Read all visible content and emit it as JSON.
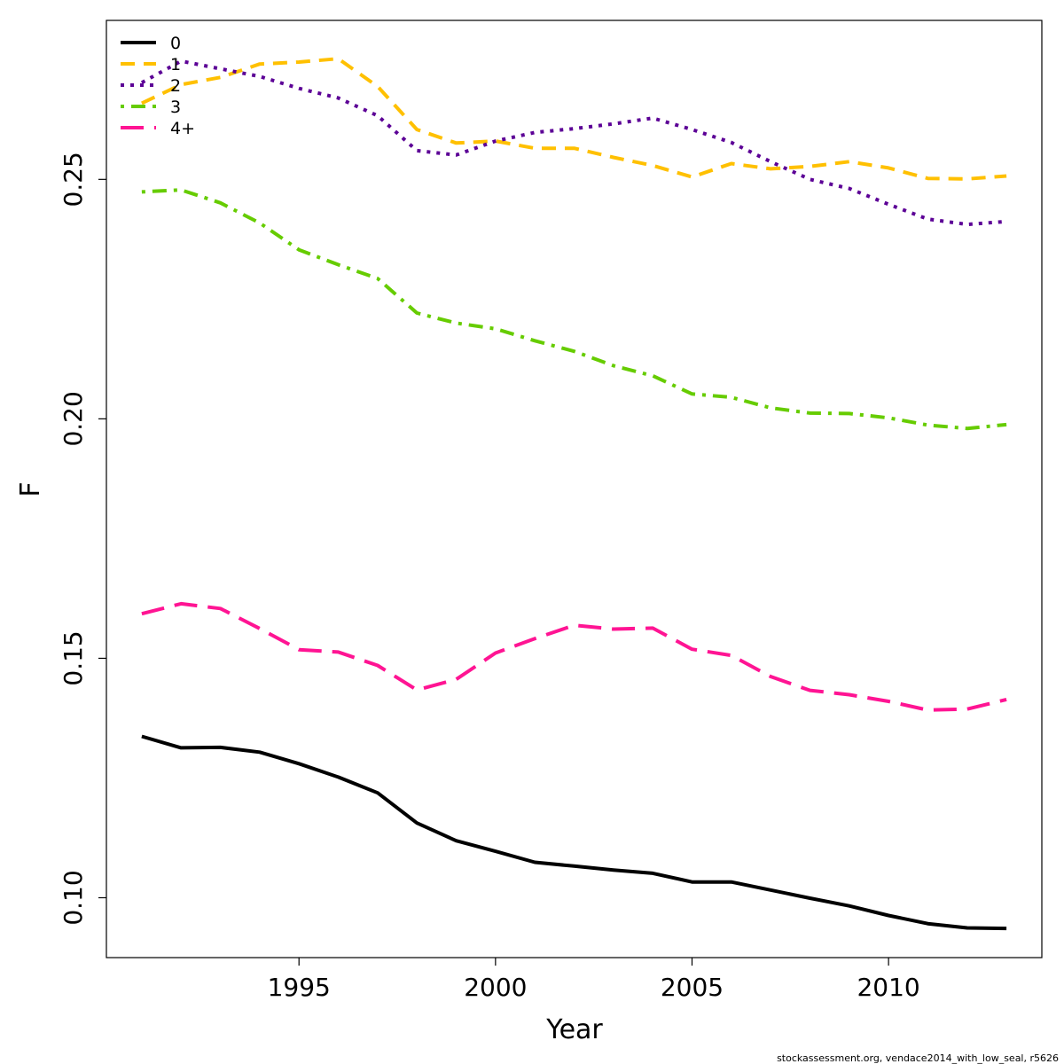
{
  "chart_data": {
    "type": "line",
    "xlabel": "Year",
    "ylabel": "F",
    "xlim": [
      1990.1,
      2013.9
    ],
    "ylim": [
      0.0875,
      0.2832
    ],
    "x_ticks": [
      1995,
      2000,
      2005,
      2010
    ],
    "x_tick_labels": [
      "1995",
      "2000",
      "2005",
      "2010"
    ],
    "y_ticks": [
      0.1,
      0.15,
      0.2,
      0.25
    ],
    "y_tick_labels": [
      "0.10",
      "0.15",
      "0.20",
      "0.25"
    ],
    "grid": false,
    "legend_position": "top-left",
    "x": [
      1991,
      1992,
      1993,
      1994,
      1995,
      1996,
      1997,
      1998,
      1999,
      2000,
      2001,
      2002,
      2003,
      2004,
      2005,
      2006,
      2007,
      2008,
      2009,
      2010,
      2011,
      2012,
      2013
    ],
    "series": [
      {
        "name": "0",
        "color": "#000000",
        "dash": "solid",
        "values": [
          0.1337,
          0.1313,
          0.1314,
          0.1304,
          0.128,
          0.1252,
          0.1219,
          0.1156,
          0.1119,
          0.1097,
          0.1074,
          0.1066,
          0.1058,
          0.1051,
          0.1033,
          0.1033,
          0.1016,
          0.0999,
          0.0983,
          0.0963,
          0.0946,
          0.0937,
          0.0936
        ]
      },
      {
        "name": "1",
        "color": "#FFC000",
        "dash": "dashed",
        "values": [
          0.2659,
          0.2698,
          0.2713,
          0.2741,
          0.2745,
          0.2752,
          0.2694,
          0.2604,
          0.2576,
          0.258,
          0.2565,
          0.2565,
          0.2546,
          0.2529,
          0.2505,
          0.2533,
          0.2522,
          0.2527,
          0.2537,
          0.2524,
          0.2502,
          0.2501,
          0.2507
        ]
      },
      {
        "name": "2",
        "color": "#5C0096",
        "dash": "dotted",
        "values": [
          0.2702,
          0.2747,
          0.2731,
          0.2715,
          0.269,
          0.267,
          0.2633,
          0.256,
          0.2551,
          0.258,
          0.2598,
          0.2606,
          0.2616,
          0.2628,
          0.2604,
          0.2577,
          0.2537,
          0.25,
          0.2481,
          0.2448,
          0.2417,
          0.2406,
          0.2412
        ]
      },
      {
        "name": "3",
        "color": "#66CC00",
        "dash": "dotdash",
        "values": [
          0.2474,
          0.2478,
          0.2451,
          0.2409,
          0.2353,
          0.2322,
          0.2293,
          0.2221,
          0.22,
          0.2188,
          0.2163,
          0.2141,
          0.2111,
          0.209,
          0.2052,
          0.2045,
          0.2023,
          0.2012,
          0.2011,
          0.2002,
          0.1987,
          0.198,
          0.1988
        ]
      },
      {
        "name": "4+",
        "color": "#FF1493",
        "dash": "longdash",
        "values": [
          0.1593,
          0.1614,
          0.1604,
          0.1562,
          0.1518,
          0.1513,
          0.1485,
          0.1434,
          0.1456,
          0.1511,
          0.1541,
          0.1569,
          0.1561,
          0.1563,
          0.1519,
          0.1506,
          0.1462,
          0.1433,
          0.1424,
          0.141,
          0.1392,
          0.1394,
          0.1414
        ]
      }
    ],
    "legend": [
      "0",
      "1",
      "2",
      "3",
      "4+"
    ]
  },
  "credit": "stockassessment.org, vendace2014_with_low_seal, r5626"
}
